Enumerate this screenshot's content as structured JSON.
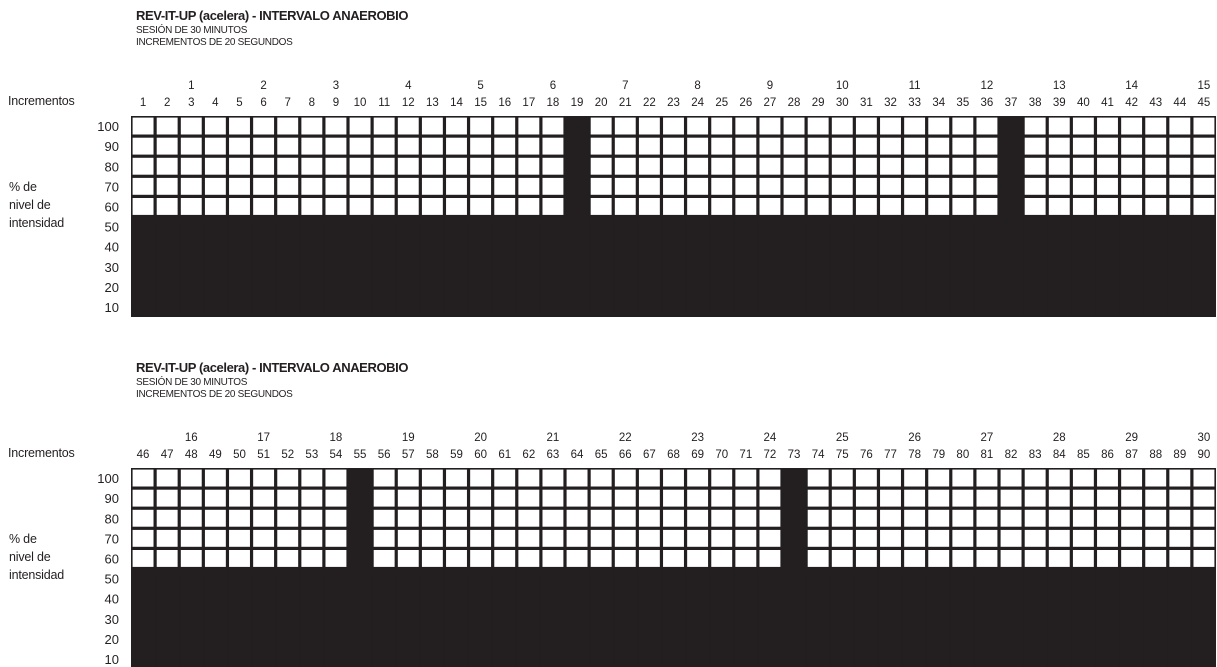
{
  "chart_data": [
    {
      "type": "bar",
      "title": "REV-IT-UP (acelera) - INTERVALO ANAEROBIO",
      "subtitle": [
        "SESIÓN DE 30 MINUTOS",
        "INCREMENTOS DE 20 SEGUNDOS"
      ],
      "xlabel": "Incrementos",
      "ylabel": "% de nivel de intensidad",
      "yticks": [
        100,
        90,
        80,
        70,
        60,
        50,
        40,
        30,
        20,
        10
      ],
      "ylim": [
        0,
        100
      ],
      "categories": [
        1,
        2,
        3,
        4,
        5,
        6,
        7,
        8,
        9,
        10,
        11,
        12,
        13,
        14,
        15,
        16,
        17,
        18,
        19,
        20,
        21,
        22,
        23,
        24,
        25,
        26,
        27,
        28,
        29,
        30,
        31,
        32,
        33,
        34,
        35,
        36,
        37,
        38,
        39,
        40,
        41,
        42,
        43,
        44,
        45
      ],
      "minute_labels": [
        1,
        2,
        3,
        4,
        5,
        6,
        7,
        8,
        9,
        10,
        11,
        12,
        13,
        14,
        15
      ],
      "values": [
        50,
        50,
        50,
        50,
        50,
        50,
        50,
        50,
        50,
        50,
        50,
        50,
        50,
        50,
        50,
        50,
        50,
        50,
        100,
        50,
        50,
        50,
        50,
        50,
        50,
        50,
        50,
        50,
        50,
        50,
        50,
        50,
        50,
        50,
        50,
        50,
        100,
        50,
        50,
        50,
        50,
        50,
        50,
        50,
        50
      ]
    },
    {
      "type": "bar",
      "title": "REV-IT-UP (acelera) - INTERVALO ANAEROBIO",
      "subtitle": [
        "SESIÓN DE 30 MINUTOS",
        "INCREMENTOS DE 20 SEGUNDOS"
      ],
      "xlabel": "Incrementos",
      "ylabel": "% de nivel de intensidad",
      "yticks": [
        100,
        90,
        80,
        70,
        60,
        50,
        40,
        30,
        20,
        10
      ],
      "ylim": [
        0,
        100
      ],
      "categories": [
        46,
        47,
        48,
        49,
        50,
        51,
        52,
        53,
        54,
        55,
        56,
        57,
        58,
        59,
        60,
        61,
        62,
        63,
        64,
        65,
        66,
        67,
        68,
        69,
        70,
        71,
        72,
        73,
        74,
        75,
        76,
        77,
        78,
        79,
        80,
        81,
        82,
        83,
        84,
        85,
        86,
        87,
        88,
        89,
        90
      ],
      "minute_labels": [
        16,
        17,
        18,
        19,
        20,
        21,
        22,
        23,
        24,
        25,
        26,
        27,
        28,
        29,
        30
      ],
      "values": [
        50,
        50,
        50,
        50,
        50,
        50,
        50,
        50,
        50,
        100,
        50,
        50,
        50,
        50,
        50,
        50,
        50,
        50,
        50,
        50,
        50,
        50,
        50,
        50,
        50,
        50,
        50,
        100,
        50,
        50,
        50,
        50,
        50,
        50,
        50,
        50,
        50,
        50,
        50,
        50,
        50,
        50,
        50,
        50,
        50
      ]
    }
  ],
  "colors": {
    "fill": "#231f20",
    "cell": "#ffffff"
  },
  "ylabel_lines": [
    "% de",
    "nivel de",
    "intensidad"
  ]
}
